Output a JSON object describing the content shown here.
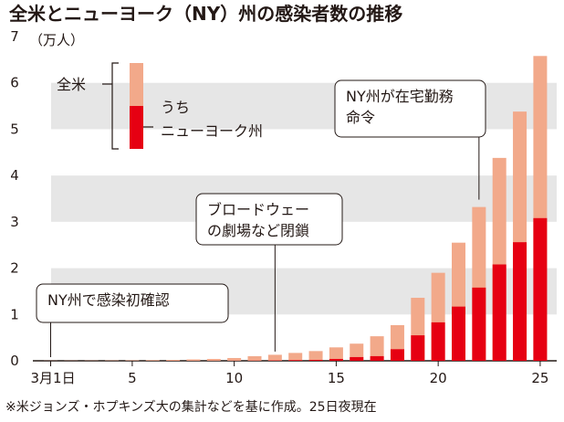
{
  "chart_data": {
    "type": "bar",
    "title": "全米とニューヨーク（NY）州の感染者数の推移",
    "ylabel": "（万人）",
    "ylim": [
      0,
      7
    ],
    "grid": "alternating horizontal bands",
    "yticks": [
      "0",
      "1",
      "2",
      "3",
      "4",
      "5",
      "6",
      "7"
    ],
    "xticks": [
      {
        "day": 1,
        "label": "3月1日"
      },
      {
        "day": 5,
        "label": "5"
      },
      {
        "day": 10,
        "label": "10"
      },
      {
        "day": 15,
        "label": "15"
      },
      {
        "day": 20,
        "label": "20"
      },
      {
        "day": 25,
        "label": "25"
      }
    ],
    "days": [
      1,
      2,
      3,
      4,
      5,
      6,
      7,
      8,
      9,
      10,
      11,
      12,
      13,
      14,
      15,
      16,
      17,
      18,
      19,
      20,
      21,
      22,
      23,
      24,
      25
    ],
    "series": [
      {
        "name": "全米",
        "color": "#f2a98a",
        "values": [
          0.003,
          0.004,
          0.005,
          0.007,
          0.01,
          0.014,
          0.02,
          0.03,
          0.04,
          0.06,
          0.1,
          0.13,
          0.17,
          0.21,
          0.29,
          0.37,
          0.53,
          0.77,
          1.36,
          1.9,
          2.55,
          3.32,
          4.38,
          5.38,
          6.58
        ]
      },
      {
        "name": "ニューヨーク州",
        "color": "#e60012",
        "values": [
          0.0001,
          0.0001,
          0.0002,
          0.0002,
          0.0003,
          0.0003,
          0.0008,
          0.001,
          0.0015,
          0.002,
          0.004,
          0.0075,
          0.015,
          0.02,
          0.04,
          0.08,
          0.1,
          0.25,
          0.55,
          0.83,
          1.17,
          1.58,
          2.08,
          2.56,
          3.08
        ]
      }
    ],
    "legend": {
      "position": "top-left",
      "total_label": "全米",
      "ny_label_line1": "うち",
      "ny_label_line2": "ニューヨーク州"
    },
    "annotations": [
      {
        "day": 1,
        "value": 0.0,
        "lines": [
          "NY州で感染初確認"
        ]
      },
      {
        "day": 12,
        "value": 0.12,
        "lines": [
          "ブロードウェー",
          "の劇場など閉鎖"
        ]
      },
      {
        "day": 22,
        "value": 3.4,
        "lines": [
          "NY州が在宅勤務",
          "命令"
        ]
      }
    ],
    "footnote": "※米ジョンズ・ホプキンズ大の集計などを基に作成。25日夜現在"
  }
}
